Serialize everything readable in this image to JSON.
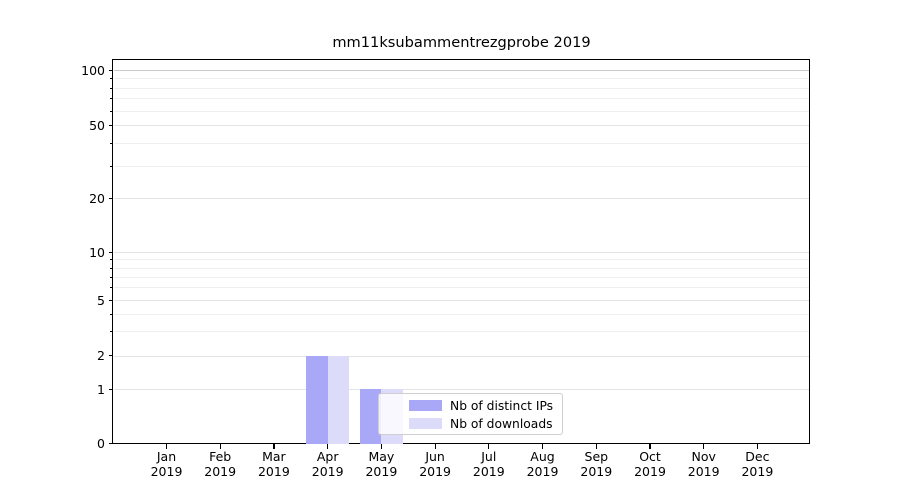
{
  "title": "mm11ksubammentrezgprobe 2019",
  "colors": {
    "bar_dark": "#a8a8f6",
    "bar_light": "#dcdcfa",
    "grid_top": "#c9c9c9",
    "grid_major": "#e4e4e4",
    "grid_minor": "#efefef",
    "axis": "#000000"
  },
  "y_axis": {
    "ticks": [
      {
        "value": 100,
        "label": "100"
      },
      {
        "value": 50,
        "label": "50"
      },
      {
        "value": 20,
        "label": "20"
      },
      {
        "value": 10,
        "label": "10"
      },
      {
        "value": 5,
        "label": "5"
      },
      {
        "value": 2,
        "label": "2"
      },
      {
        "value": 1,
        "label": "1"
      },
      {
        "value": 0,
        "label": "0"
      }
    ],
    "minor_values": [
      3,
      4,
      6,
      7,
      8,
      9,
      30,
      40,
      60,
      70,
      80,
      90
    ]
  },
  "x_axis": {
    "categories": [
      {
        "month": "Jan",
        "year": "2019"
      },
      {
        "month": "Feb",
        "year": "2019"
      },
      {
        "month": "Mar",
        "year": "2019"
      },
      {
        "month": "Apr",
        "year": "2019"
      },
      {
        "month": "May",
        "year": "2019"
      },
      {
        "month": "Jun",
        "year": "2019"
      },
      {
        "month": "Jul",
        "year": "2019"
      },
      {
        "month": "Aug",
        "year": "2019"
      },
      {
        "month": "Sep",
        "year": "2019"
      },
      {
        "month": "Oct",
        "year": "2019"
      },
      {
        "month": "Nov",
        "year": "2019"
      },
      {
        "month": "Dec",
        "year": "2019"
      }
    ]
  },
  "legend": {
    "items": [
      {
        "label": "Nb of distinct IPs",
        "swatch": "bar_dark"
      },
      {
        "label": "Nb of downloads",
        "swatch": "bar_light"
      }
    ]
  },
  "chart_data": {
    "type": "bar",
    "title": "mm11ksubammentrezgprobe 2019",
    "categories": [
      "Jan 2019",
      "Feb 2019",
      "Mar 2019",
      "Apr 2019",
      "May 2019",
      "Jun 2019",
      "Jul 2019",
      "Aug 2019",
      "Sep 2019",
      "Oct 2019",
      "Nov 2019",
      "Dec 2019"
    ],
    "series": [
      {
        "name": "Nb of distinct IPs",
        "values": [
          0,
          0,
          0,
          2,
          1,
          0,
          0,
          0,
          0,
          0,
          0,
          0
        ]
      },
      {
        "name": "Nb of downloads",
        "values": [
          0,
          0,
          0,
          2,
          1,
          0,
          0,
          0,
          0,
          0,
          0,
          0
        ]
      }
    ],
    "xlabel": "",
    "ylabel": "",
    "yscale": "symlog",
    "yticks": [
      0,
      1,
      2,
      5,
      10,
      20,
      50,
      100
    ],
    "ylim": [
      0,
      110
    ],
    "grid": "both",
    "legend_position": "inside lower center"
  }
}
